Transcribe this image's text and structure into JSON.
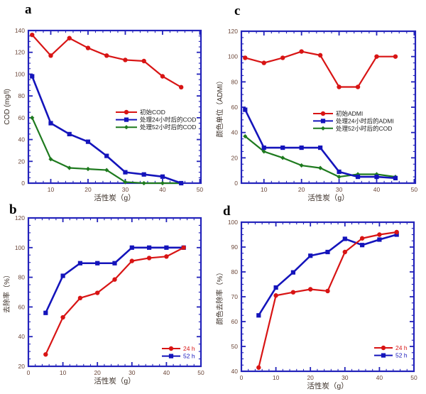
{
  "figure_title": "",
  "colors": {
    "red_series": "#d81414",
    "blue_series": "#1414bb",
    "green_series": "#1e7a1e",
    "frame": "#2323bb",
    "tick_label": "#6b4638",
    "axis_label": "#3a2e26",
    "legend_text_dark": "#1a1a1a",
    "panel_letter": "#000000",
    "background": "#ffffff"
  },
  "chart_data": [
    {
      "id": "a",
      "letter": "a",
      "type": "line",
      "xlabel": "活性炭（g）",
      "ylabel": "COD (mg/l)",
      "xlim": [
        4,
        50.3
      ],
      "ylim": [
        0,
        140
      ],
      "xticks": [
        10,
        20,
        30,
        40,
        50
      ],
      "yticks": [
        0,
        20,
        40,
        60,
        80,
        100,
        120,
        140
      ],
      "x_minor_step": 2,
      "y_minor_step": 5,
      "grid": false,
      "legend_position": "middle-right",
      "x": [
        5,
        10,
        15,
        20,
        25,
        30,
        35,
        40,
        45
      ],
      "series": [
        {
          "name": "初始COD",
          "color": "#d81414",
          "marker": "circle",
          "values": [
            136,
            117,
            133,
            124,
            117,
            113,
            112,
            98,
            88
          ]
        },
        {
          "name": "处理24小时后的COD",
          "color": "#1414bb",
          "marker": "square",
          "values": [
            98,
            55,
            45,
            38,
            25,
            10,
            8,
            6,
            0
          ]
        },
        {
          "name": "处理52小时后的COD",
          "color": "#1e7a1e",
          "marker": "diamond",
          "values": [
            60,
            22,
            14,
            13,
            12,
            1,
            0,
            0,
            0
          ]
        }
      ]
    },
    {
      "id": "b",
      "letter": "b",
      "type": "line",
      "xlabel": "活性炭（g）",
      "ylabel": "去除率（%）",
      "xlim": [
        0,
        50
      ],
      "ylim": [
        20,
        120
      ],
      "xticks": [
        0,
        10,
        20,
        30,
        40,
        50
      ],
      "yticks": [
        20,
        40,
        60,
        80,
        100,
        120
      ],
      "x_minor_step": 2,
      "y_minor_step": 5,
      "grid": false,
      "legend_position": "bottom-right",
      "x": [
        5,
        10,
        15,
        20,
        25,
        30,
        35,
        40,
        45
      ],
      "series": [
        {
          "name": "24 h",
          "color": "#d81414",
          "marker": "circle",
          "values": [
            28,
            53,
            66,
            69.5,
            78.5,
            91,
            93,
            94,
            100
          ]
        },
        {
          "name": "52 h",
          "color": "#1414bb",
          "marker": "square",
          "values": [
            56,
            81,
            89.5,
            89.5,
            89.5,
            100,
            100,
            100,
            100
          ]
        }
      ]
    },
    {
      "id": "c",
      "letter": "c",
      "type": "line",
      "xlabel": "活性炭（g）",
      "ylabel": "颜色单位（ADMI）",
      "xlim": [
        4,
        50.3
      ],
      "ylim": [
        0,
        120
      ],
      "xticks": [
        10,
        20,
        30,
        40,
        50
      ],
      "yticks": [
        0,
        20,
        40,
        60,
        80,
        100,
        120
      ],
      "x_minor_step": 2,
      "y_minor_step": 5,
      "grid": false,
      "legend_position": "middle-right",
      "x": [
        5,
        10,
        15,
        20,
        25,
        30,
        35,
        40,
        45
      ],
      "series": [
        {
          "name": "初始ADMI",
          "color": "#d81414",
          "marker": "circle",
          "values": [
            99,
            95,
            99,
            104,
            101,
            76,
            76,
            100,
            100
          ]
        },
        {
          "name": "处理24小时后的ADMI",
          "color": "#1414bb",
          "marker": "square",
          "values": [
            58,
            28,
            28,
            28,
            28,
            9,
            5,
            5,
            4
          ]
        },
        {
          "name": "处理52小时后的COD",
          "color": "#1e7a1e",
          "marker": "diamond",
          "values": [
            37,
            25,
            20,
            14,
            12,
            5,
            7,
            7,
            5
          ]
        }
      ]
    },
    {
      "id": "d",
      "letter": "d",
      "type": "line",
      "xlabel": "活性炭（g）",
      "ylabel": "颜色去除率（%）",
      "xlim": [
        0,
        50
      ],
      "ylim": [
        40,
        100
      ],
      "xticks": [
        0,
        10,
        20,
        30,
        40,
        50
      ],
      "yticks": [
        40,
        50,
        60,
        70,
        80,
        90,
        100
      ],
      "x_minor_step": 2,
      "y_minor_step": 2.5,
      "grid": false,
      "legend_position": "bottom-right",
      "x": [
        5,
        10,
        15,
        20,
        25,
        30,
        35,
        40,
        45
      ],
      "series": [
        {
          "name": "24 h",
          "color": "#d81414",
          "marker": "circle",
          "values": [
            41.5,
            70.5,
            71.8,
            73,
            72.3,
            88,
            93.5,
            95,
            96
          ]
        },
        {
          "name": "52 h",
          "color": "#1414bb",
          "marker": "square",
          "values": [
            62.5,
            73.7,
            79.8,
            86.5,
            88,
            93.3,
            90.8,
            93,
            95
          ]
        }
      ]
    }
  ]
}
